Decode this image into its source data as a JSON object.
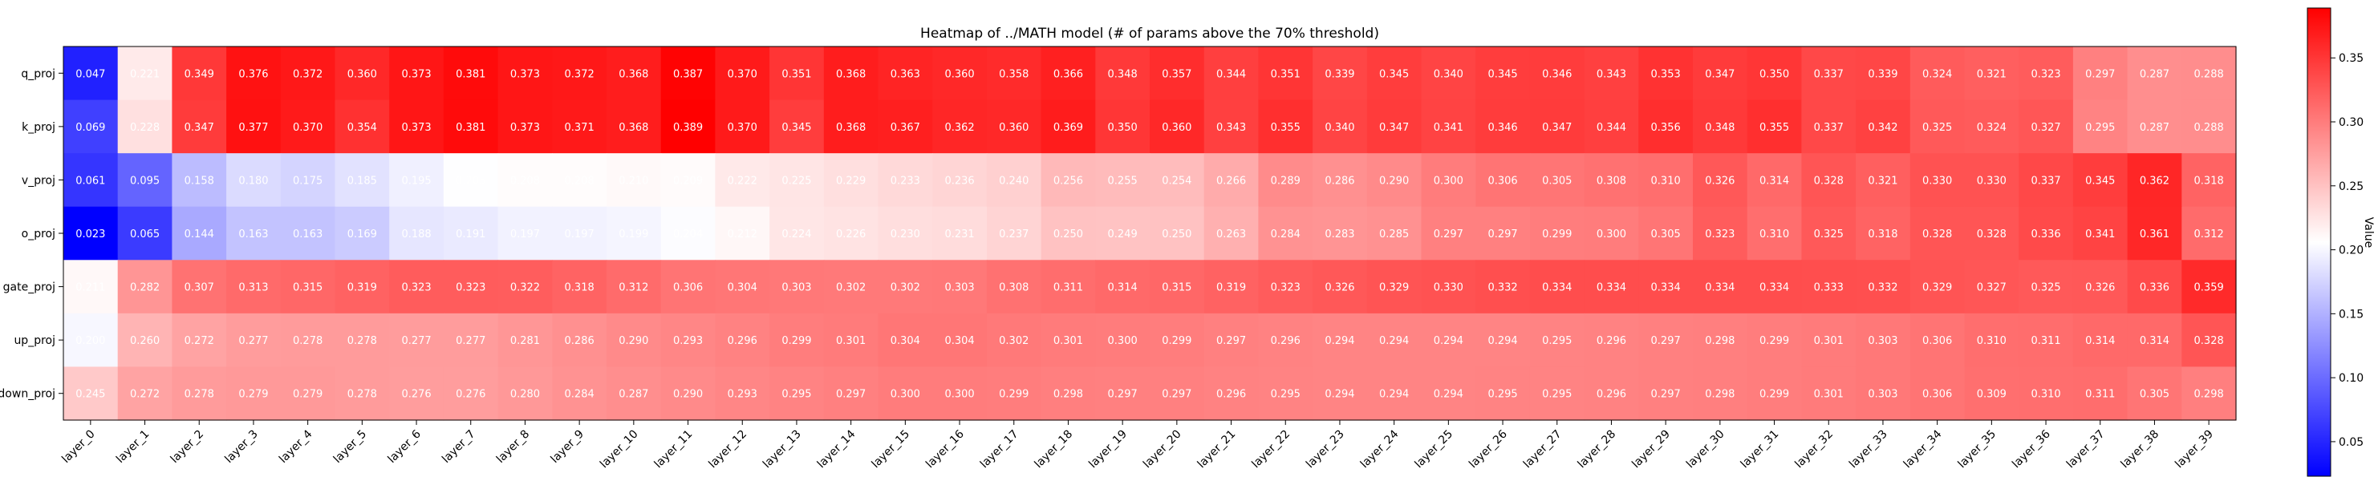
{
  "chart_data": {
    "type": "heatmap",
    "title": "Heatmap of ../MATH model (# of params above the 70% threshold)",
    "xlabel": "",
    "ylabel": "",
    "colorbar_label": "Value",
    "colormap": "bwr",
    "color_low": "#0000ff",
    "color_mid": "#ffffff",
    "color_high": "#ff0000",
    "vmin": 0.023,
    "vmax": 0.389,
    "colorbar_ticks": [
      0.05,
      0.1,
      0.15,
      0.2,
      0.25,
      0.3,
      0.35
    ],
    "colorbar_tick_labels": [
      "0.05",
      "0.10",
      "0.15",
      "0.20",
      "0.25",
      "0.30",
      "0.35"
    ],
    "x_categories": [
      "layer_0",
      "layer_1",
      "layer_2",
      "layer_3",
      "layer_4",
      "layer_5",
      "layer_6",
      "layer_7",
      "layer_8",
      "layer_9",
      "layer_10",
      "layer_11",
      "layer_12",
      "layer_13",
      "layer_14",
      "layer_15",
      "layer_16",
      "layer_17",
      "layer_18",
      "layer_19",
      "layer_20",
      "layer_21",
      "layer_22",
      "layer_23",
      "layer_24",
      "layer_25",
      "layer_26",
      "layer_27",
      "layer_28",
      "layer_29",
      "layer_30",
      "layer_31",
      "layer_32",
      "layer_33",
      "layer_34",
      "layer_35",
      "layer_36",
      "layer_37",
      "layer_38",
      "layer_39"
    ],
    "y_categories": [
      "q_proj",
      "k_proj",
      "v_proj",
      "o_proj",
      "gate_proj",
      "up_proj",
      "down_proj"
    ],
    "values": [
      [
        0.047,
        0.221,
        0.349,
        0.376,
        0.372,
        0.36,
        0.373,
        0.381,
        0.373,
        0.372,
        0.368,
        0.387,
        0.37,
        0.351,
        0.368,
        0.363,
        0.36,
        0.358,
        0.366,
        0.348,
        0.357,
        0.344,
        0.351,
        0.339,
        0.345,
        0.34,
        0.345,
        0.346,
        0.343,
        0.353,
        0.347,
        0.35,
        0.337,
        0.339,
        0.324,
        0.321,
        0.323,
        0.297,
        0.287,
        0.288
      ],
      [
        0.069,
        0.228,
        0.347,
        0.377,
        0.37,
        0.354,
        0.373,
        0.381,
        0.373,
        0.371,
        0.368,
        0.389,
        0.37,
        0.345,
        0.368,
        0.367,
        0.362,
        0.36,
        0.369,
        0.35,
        0.36,
        0.343,
        0.355,
        0.34,
        0.347,
        0.341,
        0.346,
        0.347,
        0.344,
        0.356,
        0.348,
        0.355,
        0.337,
        0.342,
        0.325,
        0.324,
        0.327,
        0.295,
        0.287,
        0.288
      ],
      [
        0.061,
        0.095,
        0.158,
        0.18,
        0.175,
        0.185,
        0.195,
        0.205,
        0.208,
        0.208,
        0.21,
        0.209,
        0.222,
        0.225,
        0.229,
        0.233,
        0.236,
        0.24,
        0.256,
        0.255,
        0.254,
        0.266,
        0.289,
        0.286,
        0.29,
        0.3,
        0.306,
        0.305,
        0.308,
        0.31,
        0.326,
        0.314,
        0.328,
        0.321,
        0.33,
        0.33,
        0.337,
        0.345,
        0.362,
        0.318
      ],
      [
        0.023,
        0.065,
        0.144,
        0.163,
        0.163,
        0.169,
        0.188,
        0.191,
        0.197,
        0.197,
        0.199,
        0.204,
        0.212,
        0.224,
        0.226,
        0.23,
        0.231,
        0.237,
        0.25,
        0.249,
        0.25,
        0.263,
        0.284,
        0.283,
        0.285,
        0.297,
        0.297,
        0.299,
        0.3,
        0.305,
        0.323,
        0.31,
        0.325,
        0.318,
        0.328,
        0.328,
        0.336,
        0.341,
        0.361,
        0.312
      ],
      [
        0.211,
        0.282,
        0.307,
        0.313,
        0.315,
        0.319,
        0.323,
        0.323,
        0.322,
        0.318,
        0.312,
        0.306,
        0.304,
        0.303,
        0.302,
        0.302,
        0.303,
        0.308,
        0.311,
        0.314,
        0.315,
        0.319,
        0.323,
        0.326,
        0.329,
        0.33,
        0.332,
        0.334,
        0.334,
        0.334,
        0.334,
        0.334,
        0.333,
        0.332,
        0.329,
        0.327,
        0.325,
        0.326,
        0.336,
        0.359
      ],
      [
        0.2,
        0.26,
        0.272,
        0.277,
        0.278,
        0.278,
        0.277,
        0.277,
        0.281,
        0.286,
        0.29,
        0.293,
        0.296,
        0.299,
        0.301,
        0.304,
        0.304,
        0.302,
        0.301,
        0.3,
        0.299,
        0.297,
        0.296,
        0.294,
        0.294,
        0.294,
        0.294,
        0.295,
        0.296,
        0.297,
        0.298,
        0.299,
        0.301,
        0.303,
        0.306,
        0.31,
        0.311,
        0.314,
        0.314,
        0.328
      ],
      [
        0.245,
        0.272,
        0.278,
        0.279,
        0.279,
        0.278,
        0.276,
        0.276,
        0.28,
        0.284,
        0.287,
        0.29,
        0.293,
        0.295,
        0.297,
        0.3,
        0.3,
        0.299,
        0.298,
        0.297,
        0.297,
        0.296,
        0.295,
        0.294,
        0.294,
        0.294,
        0.295,
        0.295,
        0.296,
        0.297,
        0.298,
        0.299,
        0.301,
        0.303,
        0.306,
        0.309,
        0.31,
        0.311,
        0.305,
        0.298
      ]
    ],
    "cell_labels": [
      [
        "0.047",
        "0.221",
        "0.349",
        "0.376",
        "0.372",
        "0.360",
        "0.373",
        "0.381",
        "0.373",
        "0.372",
        "0.368",
        "0.387",
        "0.370",
        "0.351",
        "0.368",
        "0.363",
        "0.360",
        "0.358",
        "0.366",
        "0.348",
        "0.357",
        "0.344",
        "0.351",
        "0.339",
        "0.345",
        "0.340",
        "0.345",
        "0.346",
        "0.343",
        "0.353",
        "0.347",
        "0.350",
        "0.337",
        "0.339",
        "0.324",
        "0.321",
        "0.323",
        "0.297",
        "0.287",
        "0.288"
      ],
      [
        "0.069",
        "0.228",
        "0.347",
        "0.377",
        "0.370",
        "0.354",
        "0.373",
        "0.381",
        "0.373",
        "0.371",
        "0.368",
        "0.389",
        "0.370",
        "0.345",
        "0.368",
        "0.367",
        "0.362",
        "0.360",
        "0.369",
        "0.350",
        "0.360",
        "0.343",
        "0.355",
        "0.340",
        "0.347",
        "0.341",
        "0.346",
        "0.347",
        "0.344",
        "0.356",
        "0.348",
        "0.355",
        "0.337",
        "0.342",
        "0.325",
        "0.324",
        "0.327",
        "0.295",
        "0.287",
        "0.288"
      ],
      [
        "0.061",
        "0.095",
        "0.158",
        "0.180",
        "0.175",
        "0.185",
        "0.195",
        "0.205",
        "0.208",
        "0.208",
        "0.210",
        "0.209",
        "0.222",
        "0.225",
        "0.229",
        "0.233",
        "0.236",
        "0.240",
        "0.256",
        "0.255",
        "0.254",
        "0.266",
        "0.289",
        "0.286",
        "0.290",
        "0.300",
        "0.306",
        "0.305",
        "0.308",
        "0.310",
        "0.326",
        "0.314",
        "0.328",
        "0.321",
        "0.330",
        "0.330",
        "0.337",
        "0.345",
        "0.362",
        "0.318"
      ],
      [
        "0.023",
        "0.065",
        "0.144",
        "0.163",
        "0.163",
        "0.169",
        "0.188",
        "0.191",
        "0.197",
        "0.197",
        "0.199",
        "0.204",
        "0.212",
        "0.224",
        "0.226",
        "0.230",
        "0.231",
        "0.237",
        "0.250",
        "0.249",
        "0.250",
        "0.263",
        "0.284",
        "0.283",
        "0.285",
        "0.297",
        "0.297",
        "0.299",
        "0.300",
        "0.305",
        "0.323",
        "0.310",
        "0.325",
        "0.318",
        "0.328",
        "0.328",
        "0.336",
        "0.341",
        "0.361",
        "0.312"
      ],
      [
        "0.211",
        "0.282",
        "0.307",
        "0.313",
        "0.315",
        "0.319",
        "0.323",
        "0.323",
        "0.322",
        "0.318",
        "0.312",
        "0.306",
        "0.304",
        "0.303",
        "0.302",
        "0.302",
        "0.303",
        "0.308",
        "0.311",
        "0.314",
        "0.315",
        "0.319",
        "0.323",
        "0.326",
        "0.329",
        "0.330",
        "0.332",
        "0.334",
        "0.334",
        "0.334",
        "0.334",
        "0.334",
        "0.333",
        "0.332",
        "0.329",
        "0.327",
        "0.325",
        "0.326",
        "0.336",
        "0.359"
      ],
      [
        "0.200",
        "0.260",
        "0.272",
        "0.277",
        "0.278",
        "0.278",
        "0.277",
        "0.277",
        "0.281",
        "0.286",
        "0.290",
        "0.293",
        "0.296",
        "0.299",
        "0.301",
        "0.304",
        "0.304",
        "0.302",
        "0.301",
        "0.300",
        "0.299",
        "0.297",
        "0.296",
        "0.294",
        "0.294",
        "0.294",
        "0.294",
        "0.295",
        "0.296",
        "0.297",
        "0.298",
        "0.299",
        "0.301",
        "0.303",
        "0.306",
        "0.310",
        "0.311",
        "0.314",
        "0.314",
        "0.328"
      ],
      [
        "0.245",
        "0.272",
        "0.278",
        "0.279",
        "0.279",
        "0.278",
        "0.276",
        "0.276",
        "0.280",
        "0.284",
        "0.287",
        "0.290",
        "0.293",
        "0.295",
        "0.297",
        "0.300",
        "0.300",
        "0.299",
        "0.298",
        "0.297",
        "0.297",
        "0.296",
        "0.295",
        "0.294",
        "0.294",
        "0.294",
        "0.295",
        "0.295",
        "0.296",
        "0.297",
        "0.298",
        "0.299",
        "0.301",
        "0.303",
        "0.306",
        "0.309",
        "0.310",
        "0.311",
        "0.305",
        "0.298"
      ]
    ]
  }
}
